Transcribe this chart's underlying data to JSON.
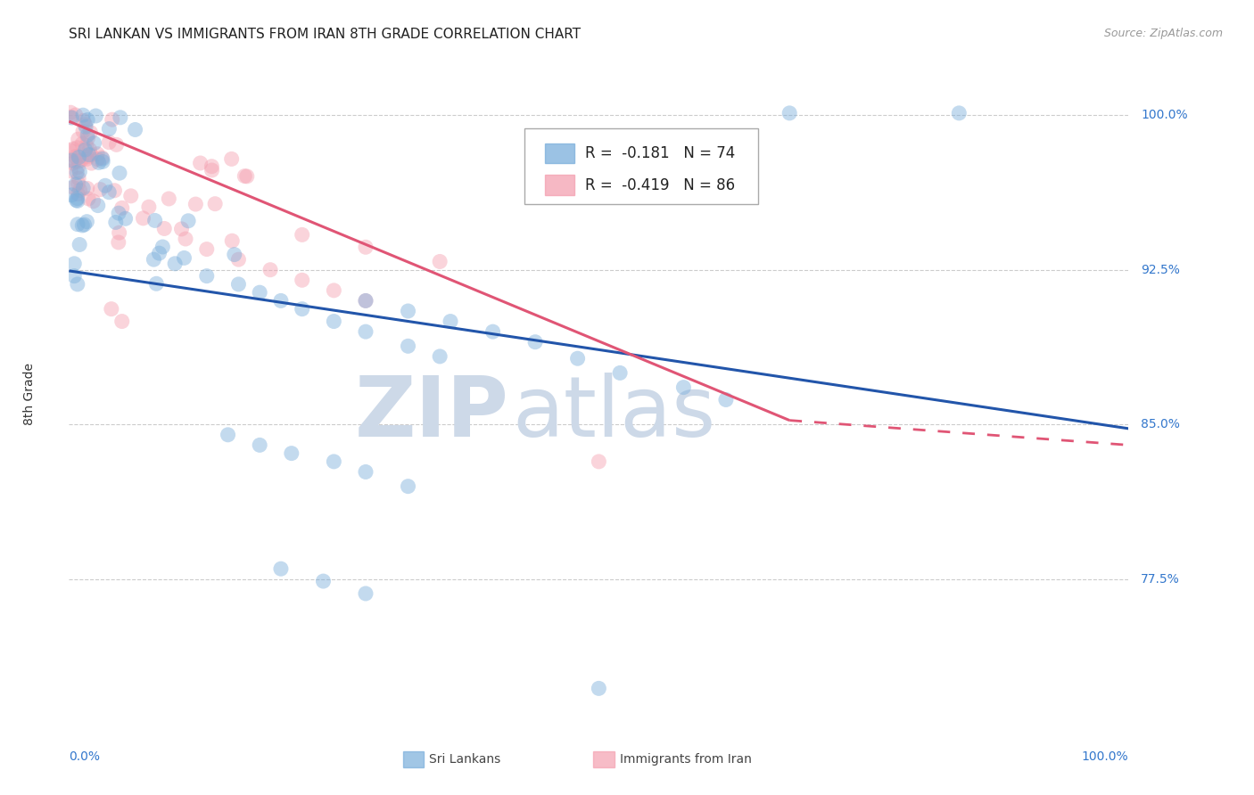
{
  "title": "SRI LANKAN VS IMMIGRANTS FROM IRAN 8TH GRADE CORRELATION CHART",
  "source": "Source: ZipAtlas.com",
  "ylabel": "8th Grade",
  "ytick_labels": [
    "100.0%",
    "92.5%",
    "85.0%",
    "77.5%"
  ],
  "ytick_values": [
    1.0,
    0.925,
    0.85,
    0.775
  ],
  "xlim": [
    0.0,
    1.0
  ],
  "ylim": [
    0.705,
    1.025
  ],
  "legend_blue_label": "Sri Lankans",
  "legend_pink_label": "Immigrants from Iran",
  "legend_blue_r": "R =  -0.181",
  "legend_blue_n": "N = 74",
  "legend_pink_r": "R =  -0.419",
  "legend_pink_n": "N = 86",
  "blue_color": "#7aaedb",
  "pink_color": "#f4a0b0",
  "blue_line_color": "#2255aa",
  "pink_line_color": "#e05575",
  "grid_color": "#cccccc",
  "background_color": "#ffffff",
  "watermark_color": "#cdd9e8",
  "blue_line_y_start": 0.9245,
  "blue_line_y_end": 0.848,
  "pink_line_x_solid_end": 0.68,
  "pink_line_y_start": 0.997,
  "pink_line_y_solid_end": 0.852,
  "pink_line_x_dash_end": 1.0,
  "pink_line_y_dash_end": 0.84,
  "title_fontsize": 11,
  "axis_label_fontsize": 10,
  "tick_fontsize": 10,
  "legend_fontsize": 12,
  "source_fontsize": 9
}
